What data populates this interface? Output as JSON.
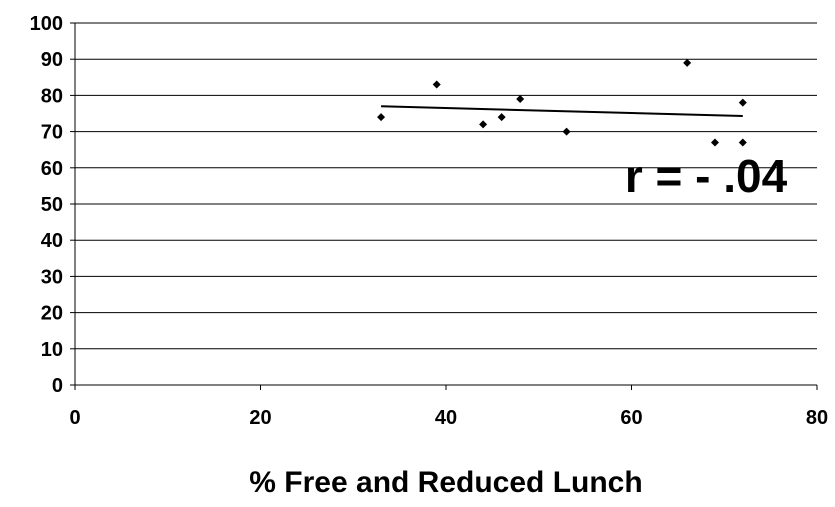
{
  "chart_data": {
    "type": "scatter",
    "title": "",
    "xlabel": "% Free and Reduced Lunch",
    "ylabel": "",
    "xlim": [
      0,
      80
    ],
    "ylim": [
      0,
      100
    ],
    "x_ticks": [
      0,
      20,
      40,
      60,
      80
    ],
    "y_ticks": [
      0,
      10,
      20,
      30,
      40,
      50,
      60,
      70,
      80,
      90,
      100
    ],
    "grid": "horizontal",
    "series": [
      {
        "points": [
          {
            "x": 33,
            "y": 74
          },
          {
            "x": 39,
            "y": 83
          },
          {
            "x": 44,
            "y": 72
          },
          {
            "x": 46,
            "y": 74
          },
          {
            "x": 48,
            "y": 79
          },
          {
            "x": 53,
            "y": 70
          },
          {
            "x": 66,
            "y": 89
          },
          {
            "x": 69,
            "y": 67
          },
          {
            "x": 72,
            "y": 78
          },
          {
            "x": 72,
            "y": 67
          }
        ]
      }
    ],
    "trendline": {
      "x": [
        33,
        72
      ],
      "y": [
        77,
        74.3
      ]
    },
    "annotation": "r = - .04"
  }
}
